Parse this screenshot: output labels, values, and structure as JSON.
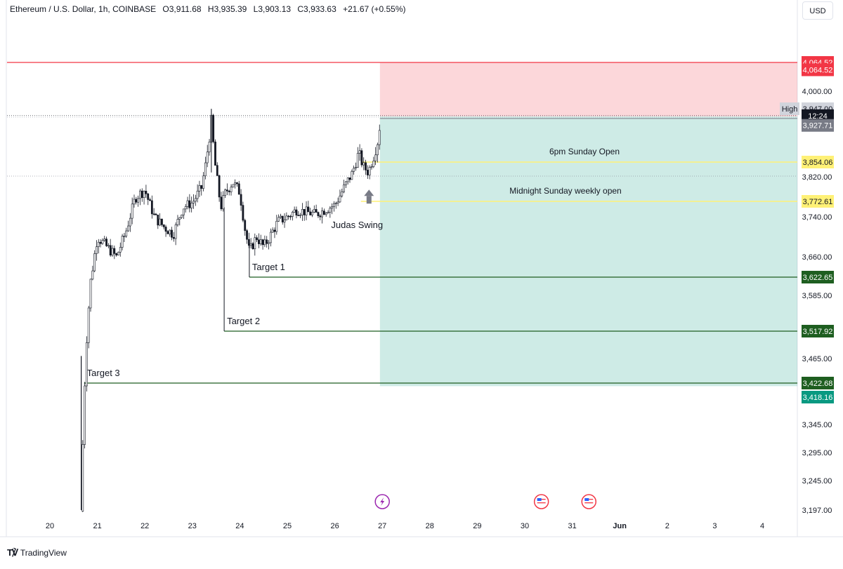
{
  "header": {
    "symbol": "Ethereum / U.S. Dollar, 1h, COINBASE",
    "open": "O3,911.68",
    "high": "H3,935.39",
    "low": "L3,903.13",
    "close": "C3,933.63",
    "change": "+21.67 (+0.55%)"
  },
  "currency_button": "USD",
  "footer": {
    "brand": "TradingView"
  },
  "chart_data": {
    "type": "candlestick",
    "title": "",
    "x_ticks": [
      "20",
      "21",
      "22",
      "23",
      "24",
      "25",
      "26",
      "27",
      "28",
      "29",
      "30",
      "31",
      "Jun",
      "2",
      "3",
      "4"
    ],
    "y_ticks": [
      "4,000.00",
      "3,820.00",
      "3,740.00",
      "3,660.00",
      "3,585.00",
      "3,465.00",
      "3,345.00",
      "3,295.00",
      "3,245.00",
      "3,197.00"
    ],
    "price_tags": [
      {
        "label": "4,064.52",
        "price": 4064.52,
        "bg": "#f23645",
        "fg": "#ffffff"
      },
      {
        "label": "4,064.52",
        "price": 4048,
        "bg": "#f23645",
        "fg": "#ffffff"
      },
      {
        "label": "3,947.00",
        "price": 3947.0,
        "bg": "#d1d4dc",
        "fg": "#131722",
        "prefix": "High"
      },
      {
        "label": "12:24",
        "price": 3935,
        "bg": "#131722",
        "fg": "#ffffff"
      },
      {
        "label": "3,927.71",
        "price": 3918,
        "bg": "#787b86",
        "fg": "#ffffff"
      },
      {
        "label": "3,854.06",
        "price": 3854.06,
        "bg": "#fff176",
        "fg": "#131722"
      },
      {
        "label": "3,772.61",
        "price": 3772.61,
        "bg": "#fff176",
        "fg": "#131722"
      },
      {
        "label": "3,622.65",
        "price": 3622.65,
        "bg": "#1e5e20",
        "fg": "#ffffff"
      },
      {
        "label": "3,517.92",
        "price": 3517.92,
        "bg": "#1e5e20",
        "fg": "#ffffff"
      },
      {
        "label": "3,422.68",
        "price": 3422.68,
        "bg": "#1e5e20",
        "fg": "#ffffff"
      },
      {
        "label": "3,418.16",
        "price": 3402,
        "bg": "#089981",
        "fg": "#ffffff"
      }
    ],
    "position": {
      "entry": 3933.63,
      "stop": 4064.52,
      "target": 3418.16,
      "start_day": 26.95
    },
    "levels": [
      {
        "name": "6pm Sunday Open",
        "price": 3854.06,
        "color": "#fff176"
      },
      {
        "name": "Midnight Sunday weekly open",
        "price": 3772.61,
        "color": "#fff176"
      }
    ],
    "targets": [
      {
        "label": "Target 1",
        "price": 3622.65,
        "from_day": 24.2
      },
      {
        "label": "Target 2",
        "price": 3517.92,
        "from_day": 23.67
      },
      {
        "label": "Target 3",
        "price": 3422.68,
        "from_day": 20.72
      }
    ],
    "annotation": {
      "label": "Judas Swing",
      "day": 26.72,
      "price": 3775
    },
    "event_markers": [
      {
        "name": "lightning-event-icon",
        "day": 27.0
      },
      {
        "name": "us-flag-event-icon",
        "day": 30.35
      },
      {
        "name": "us-flag-event-icon",
        "day": 31.35
      }
    ],
    "price_path": [
      [
        20.65,
        3195
      ],
      [
        20.75,
        3470
      ],
      [
        20.85,
        3610
      ],
      [
        21.0,
        3700
      ],
      [
        21.2,
        3680
      ],
      [
        21.4,
        3660
      ],
      [
        21.6,
        3710
      ],
      [
        21.8,
        3780
      ],
      [
        22.0,
        3795
      ],
      [
        22.2,
        3740
      ],
      [
        22.4,
        3720
      ],
      [
        22.6,
        3705
      ],
      [
        22.8,
        3760
      ],
      [
        23.0,
        3770
      ],
      [
        23.2,
        3800
      ],
      [
        23.4,
        3925
      ],
      [
        23.5,
        3830
      ],
      [
        23.6,
        3760
      ],
      [
        23.7,
        3790
      ],
      [
        23.85,
        3810
      ],
      [
        24.0,
        3790
      ],
      [
        24.1,
        3720
      ],
      [
        24.2,
        3670
      ],
      [
        24.35,
        3700
      ],
      [
        24.5,
        3680
      ],
      [
        24.6,
        3695
      ],
      [
        24.8,
        3730
      ],
      [
        25.0,
        3740
      ],
      [
        25.2,
        3755
      ],
      [
        25.4,
        3750
      ],
      [
        25.6,
        3745
      ],
      [
        25.8,
        3755
      ],
      [
        26.0,
        3765
      ],
      [
        26.2,
        3800
      ],
      [
        26.35,
        3825
      ],
      [
        26.5,
        3870
      ],
      [
        26.6,
        3845
      ],
      [
        26.7,
        3830
      ],
      [
        26.8,
        3860
      ],
      [
        26.9,
        3890
      ],
      [
        26.97,
        3932
      ]
    ]
  }
}
